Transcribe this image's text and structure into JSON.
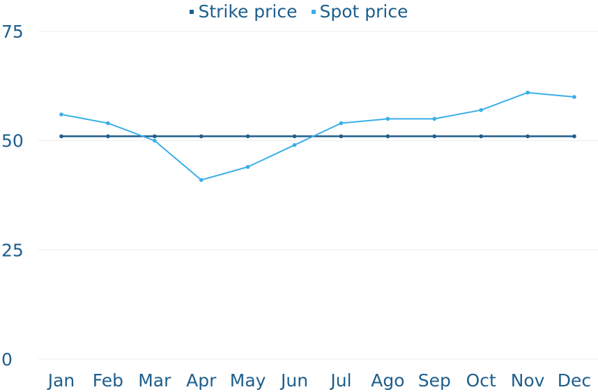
{
  "chart_data": {
    "type": "line",
    "categories": [
      "Jan",
      "Feb",
      "Mar",
      "Apr",
      "May",
      "Jun",
      "Jul",
      "Ago",
      "Sep",
      "Oct",
      "Nov",
      "Dec"
    ],
    "series": [
      {
        "name": "Strike price",
        "color": "#1d5e8c",
        "values": [
          51,
          51,
          51,
          51,
          51,
          51,
          51,
          51,
          51,
          51,
          51,
          51
        ]
      },
      {
        "name": "Spot price",
        "color": "#3aaeea",
        "values": [
          56,
          54,
          50,
          41,
          44,
          49,
          54,
          55,
          55,
          57,
          61,
          60
        ]
      }
    ],
    "yticks": [
      "0",
      "25",
      "50",
      "75"
    ],
    "ylim": [
      0,
      75
    ],
    "grid": true,
    "legend_position": "top-center",
    "title": "",
    "xlabel": "",
    "ylabel": ""
  }
}
